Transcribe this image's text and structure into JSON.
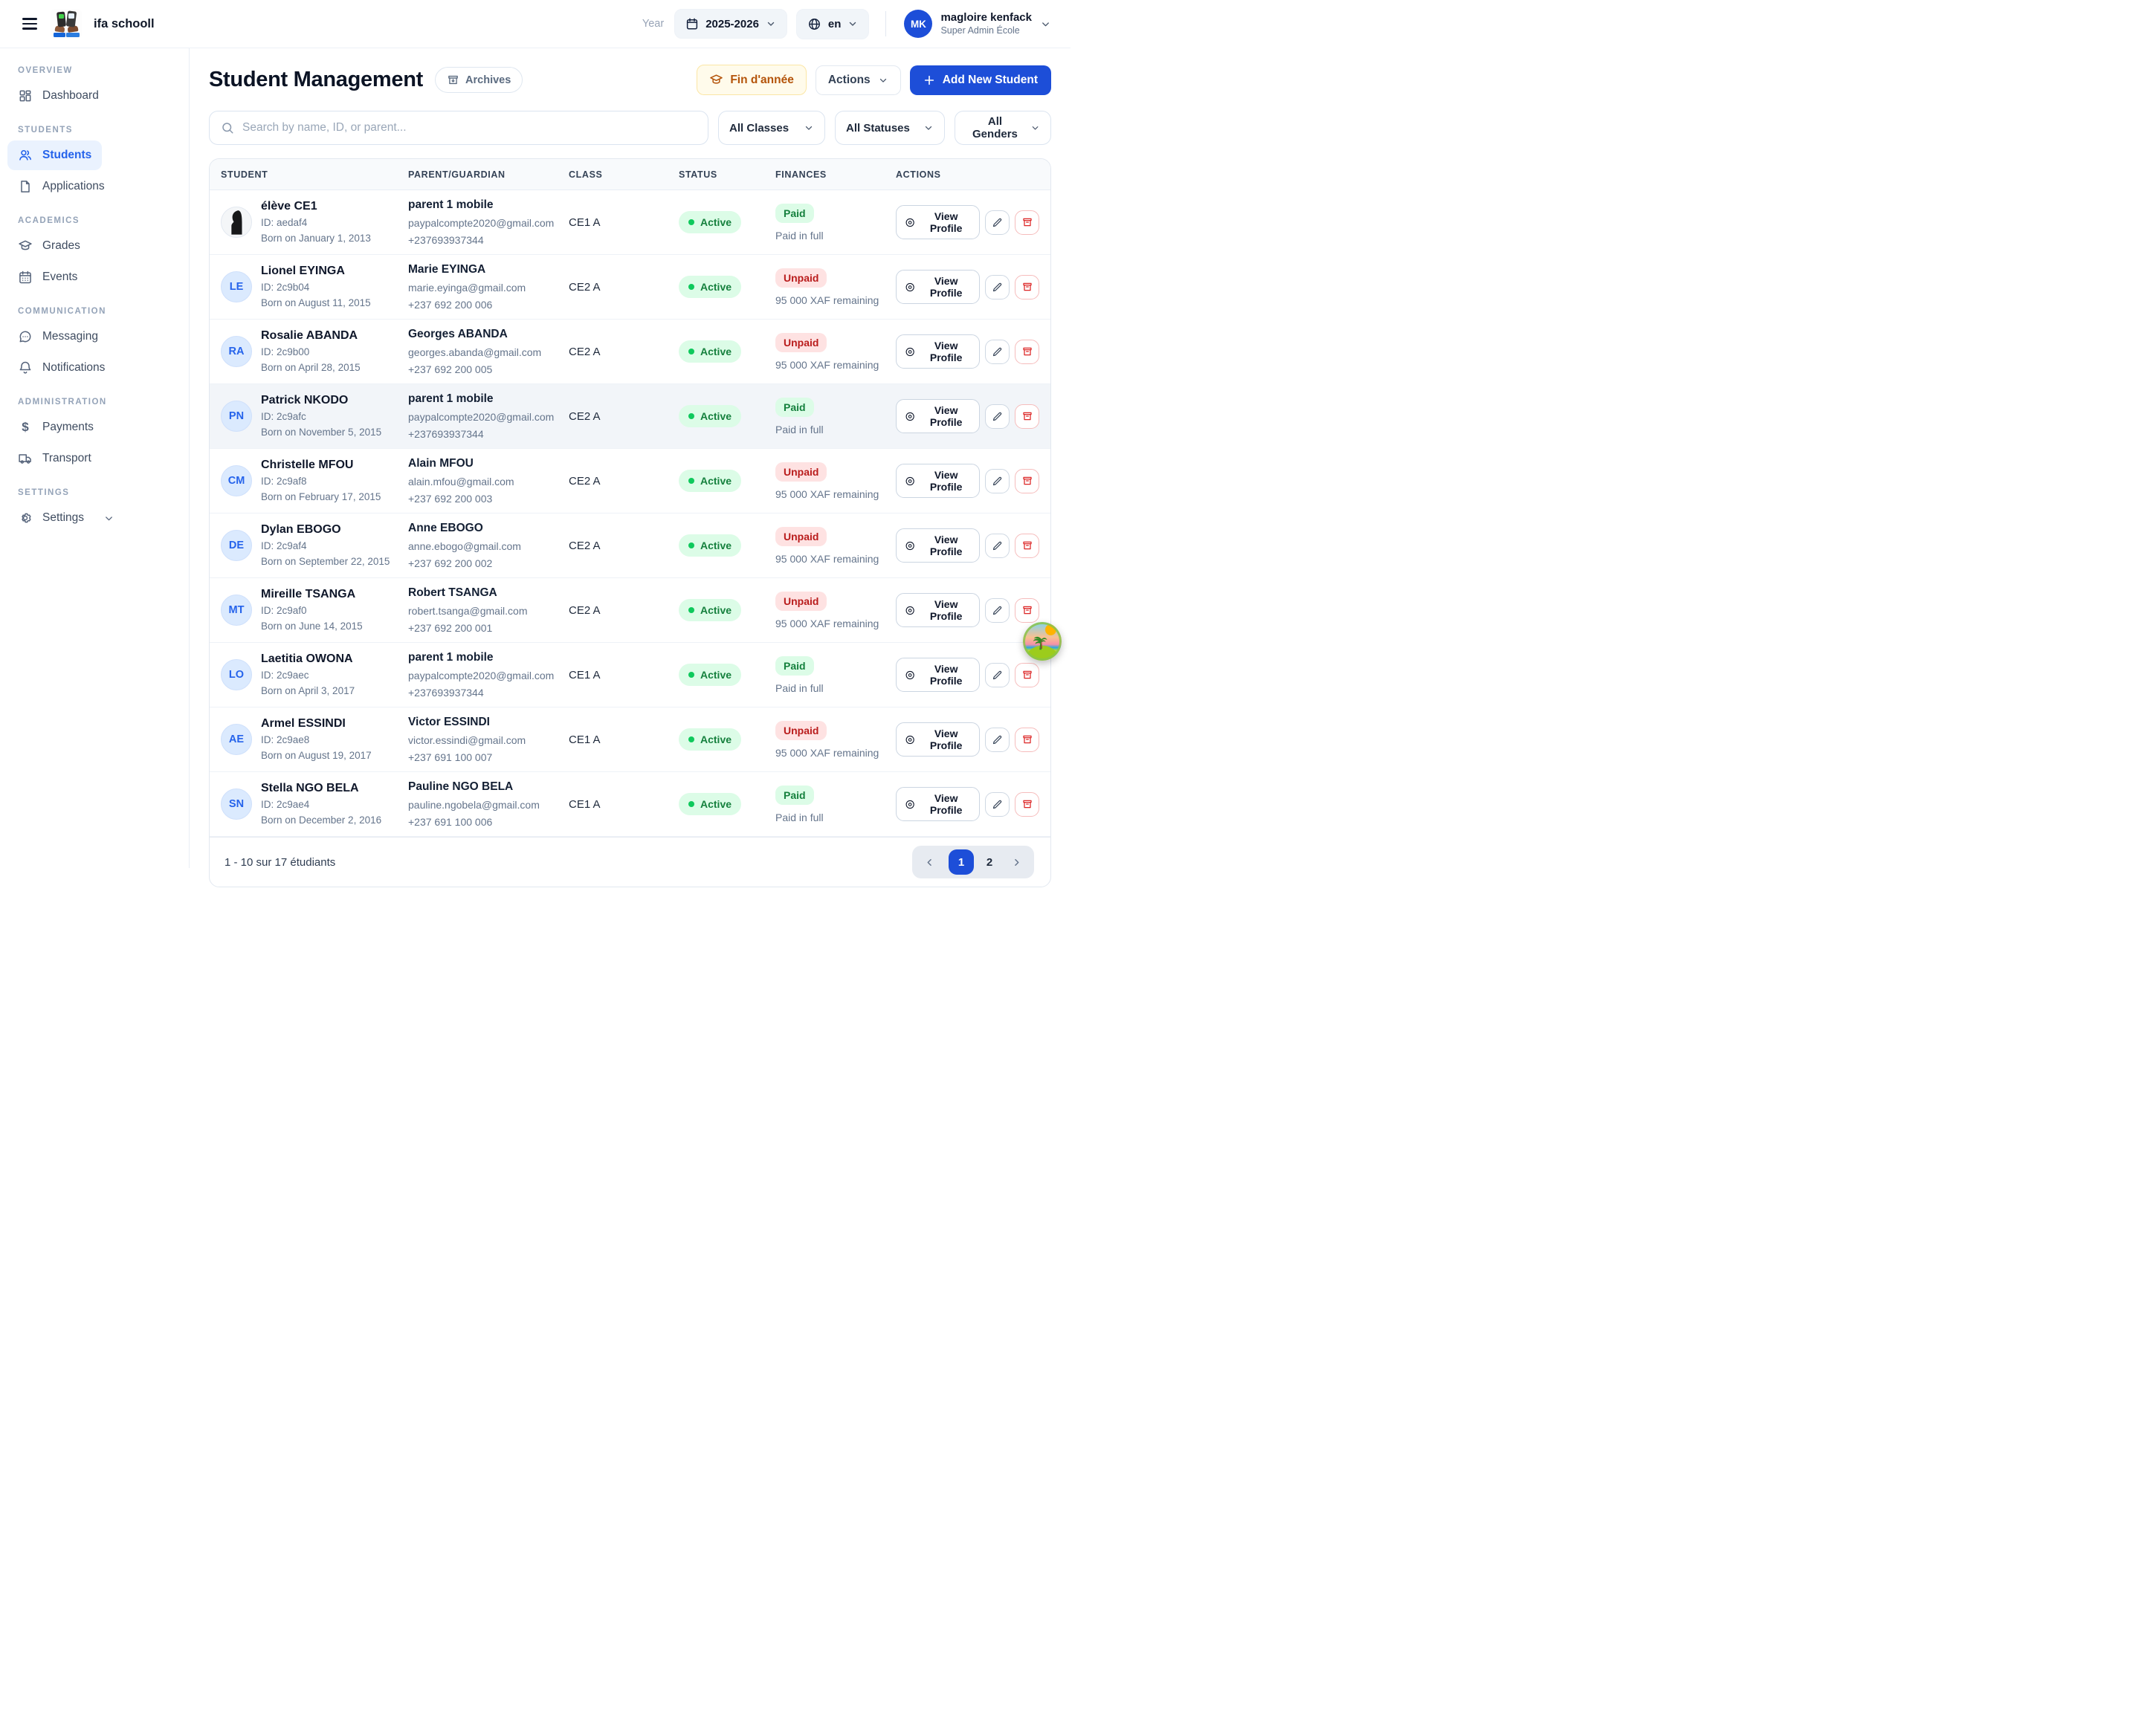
{
  "header": {
    "app_title": "ifa schooll",
    "year_label": "Year",
    "year_value": "2025-2026",
    "language": "en",
    "user": {
      "initials": "MK",
      "name": "magloire kenfack",
      "role": "Super Admin École"
    }
  },
  "sidebar": {
    "sections": [
      {
        "label": "OVERVIEW",
        "items": [
          {
            "label": "Dashboard"
          }
        ]
      },
      {
        "label": "STUDENTS",
        "items": [
          {
            "label": "Students",
            "active": true
          },
          {
            "label": "Applications"
          }
        ]
      },
      {
        "label": "ACADEMICS",
        "items": [
          {
            "label": "Grades"
          },
          {
            "label": "Events"
          }
        ]
      },
      {
        "label": "COMMUNICATION",
        "items": [
          {
            "label": "Messaging"
          },
          {
            "label": "Notifications"
          }
        ]
      },
      {
        "label": "ADMINISTRATION",
        "items": [
          {
            "label": "Payments"
          },
          {
            "label": "Transport"
          }
        ]
      },
      {
        "label": "SETTINGS",
        "items": [
          {
            "label": "Settings",
            "expandable": true
          }
        ]
      }
    ]
  },
  "page": {
    "title": "Student Management",
    "archives_label": "Archives",
    "fin_annee_label": "Fin d'année",
    "actions_label": "Actions",
    "add_student_label": "Add New Student"
  },
  "filters": {
    "search_placeholder": "Search by name, ID, or parent...",
    "class_filter": "All Classes",
    "status_filter": "All Statuses",
    "gender_filter": "All Genders"
  },
  "table": {
    "columns": [
      "STUDENT",
      "PARENT/GUARDIAN",
      "CLASS",
      "STATUS",
      "FINANCES",
      "ACTIONS"
    ],
    "view_profile_label": "View Profile",
    "rows": [
      {
        "avatar": {
          "type": "photo",
          "text": ""
        },
        "name": "élève CE1",
        "id": "ID: aedaf4",
        "born": "Born on January 1, 2013",
        "parent_name": "parent 1 mobile",
        "parent_email": "paypalcompte2020@gmail.com",
        "parent_phone": "+237693937344",
        "class": "CE1 A",
        "status": "Active",
        "finance_badge": "Paid",
        "finance_note": "Paid in full",
        "highlighted": false
      },
      {
        "avatar": {
          "type": "initials",
          "text": "LE"
        },
        "name": "Lionel EYINGA",
        "id": "ID: 2c9b04",
        "born": "Born on August 11, 2015",
        "parent_name": "Marie EYINGA",
        "parent_email": "marie.eyinga@gmail.com",
        "parent_phone": "+237 692 200 006",
        "class": "CE2 A",
        "status": "Active",
        "finance_badge": "Unpaid",
        "finance_note": "95 000 XAF remaining",
        "highlighted": false
      },
      {
        "avatar": {
          "type": "initials",
          "text": "RA"
        },
        "name": "Rosalie ABANDA",
        "id": "ID: 2c9b00",
        "born": "Born on April 28, 2015",
        "parent_name": "Georges ABANDA",
        "parent_email": "georges.abanda@gmail.com",
        "parent_phone": "+237 692 200 005",
        "class": "CE2 A",
        "status": "Active",
        "finance_badge": "Unpaid",
        "finance_note": "95 000 XAF remaining",
        "highlighted": false
      },
      {
        "avatar": {
          "type": "initials",
          "text": "PN"
        },
        "name": "Patrick NKODO",
        "id": "ID: 2c9afc",
        "born": "Born on November 5, 2015",
        "parent_name": "parent 1 mobile",
        "parent_email": "paypalcompte2020@gmail.com",
        "parent_phone": "+237693937344",
        "class": "CE2 A",
        "status": "Active",
        "finance_badge": "Paid",
        "finance_note": "Paid in full",
        "highlighted": true
      },
      {
        "avatar": {
          "type": "initials",
          "text": "CM"
        },
        "name": "Christelle MFOU",
        "id": "ID: 2c9af8",
        "born": "Born on February 17, 2015",
        "parent_name": "Alain MFOU",
        "parent_email": "alain.mfou@gmail.com",
        "parent_phone": "+237 692 200 003",
        "class": "CE2 A",
        "status": "Active",
        "finance_badge": "Unpaid",
        "finance_note": "95 000 XAF remaining",
        "highlighted": false
      },
      {
        "avatar": {
          "type": "initials",
          "text": "DE"
        },
        "name": "Dylan EBOGO",
        "id": "ID: 2c9af4",
        "born": "Born on September 22, 2015",
        "parent_name": "Anne EBOGO",
        "parent_email": "anne.ebogo@gmail.com",
        "parent_phone": "+237 692 200 002",
        "class": "CE2 A",
        "status": "Active",
        "finance_badge": "Unpaid",
        "finance_note": "95 000 XAF remaining",
        "highlighted": false
      },
      {
        "avatar": {
          "type": "initials",
          "text": "MT"
        },
        "name": "Mireille TSANGA",
        "id": "ID: 2c9af0",
        "born": "Born on June 14, 2015",
        "parent_name": "Robert TSANGA",
        "parent_email": "robert.tsanga@gmail.com",
        "parent_phone": "+237 692 200 001",
        "class": "CE2 A",
        "status": "Active",
        "finance_badge": "Unpaid",
        "finance_note": "95 000 XAF remaining",
        "highlighted": false
      },
      {
        "avatar": {
          "type": "initials",
          "text": "LO"
        },
        "name": "Laetitia OWONA",
        "id": "ID: 2c9aec",
        "born": "Born on April 3, 2017",
        "parent_name": "parent 1 mobile",
        "parent_email": "paypalcompte2020@gmail.com",
        "parent_phone": "+237693937344",
        "class": "CE1 A",
        "status": "Active",
        "finance_badge": "Paid",
        "finance_note": "Paid in full",
        "highlighted": false
      },
      {
        "avatar": {
          "type": "initials",
          "text": "AE"
        },
        "name": "Armel ESSINDI",
        "id": "ID: 2c9ae8",
        "born": "Born on August 19, 2017",
        "parent_name": "Victor ESSINDI",
        "parent_email": "victor.essindi@gmail.com",
        "parent_phone": "+237 691 100 007",
        "class": "CE1 A",
        "status": "Active",
        "finance_badge": "Unpaid",
        "finance_note": "95 000 XAF remaining",
        "highlighted": false
      },
      {
        "avatar": {
          "type": "initials",
          "text": "SN"
        },
        "name": "Stella NGO BELA",
        "id": "ID: 2c9ae4",
        "born": "Born on December 2, 2016",
        "parent_name": "Pauline NGO BELA",
        "parent_email": "pauline.ngobela@gmail.com",
        "parent_phone": "+237 691 100 006",
        "class": "CE1 A",
        "status": "Active",
        "finance_badge": "Paid",
        "finance_note": "Paid in full",
        "highlighted": false
      }
    ]
  },
  "pagination": {
    "summary": "1 - 10 sur 17 étudiants",
    "pages": [
      "1",
      "2"
    ],
    "active_page": "1"
  },
  "colors": {
    "accent_blue": "#1d4ed8",
    "link_blue": "#2563eb",
    "success_bg": "#dcfce7",
    "success_text": "#15803d",
    "danger_bg": "#fee2e2",
    "danger_text": "#b91c1c",
    "warning_bg": "#fffbeb",
    "warning_text": "#b4540a",
    "avatar_bg": "#dbeafe"
  }
}
